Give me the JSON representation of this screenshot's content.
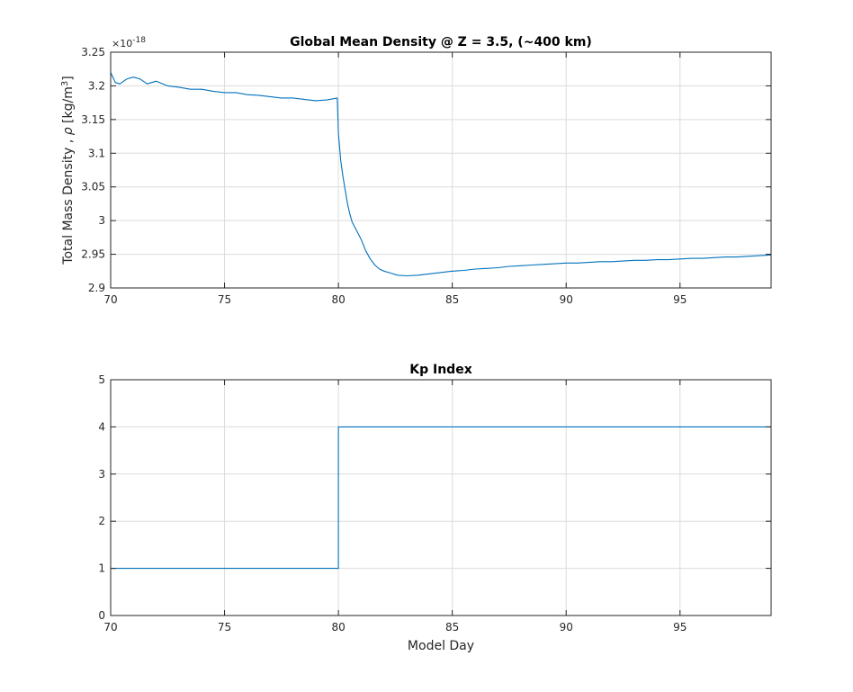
{
  "chart_data": [
    {
      "type": "line",
      "title": "Global Mean Density @ Z = 3.5, (~400 km)",
      "ylabel_main": "Total Mass Density , ",
      "ylabel_symbol": "ρ",
      "ylabel_unit_open": " [kg/m",
      "ylabel_unit_exp": "3",
      "ylabel_unit_close": "]",
      "exponent_base": "×10",
      "exponent_power": "-18",
      "xlim": [
        70,
        99
      ],
      "ylim": [
        2.9,
        3.25
      ],
      "xticks": [
        "70",
        "75",
        "80",
        "85",
        "90",
        "95"
      ],
      "yticks": [
        "2.9",
        "2.95",
        "3",
        "3.05",
        "3.1",
        "3.15",
        "3.2",
        "3.25"
      ],
      "grid": true,
      "line_color": "#0072BD",
      "series": [
        {
          "x": [
            70.0,
            70.2,
            70.4,
            70.7,
            71.0,
            71.3,
            71.6,
            72.0,
            72.5,
            73.0,
            73.5,
            74.0,
            74.5,
            75.0,
            75.5,
            76.0,
            76.5,
            77.0,
            77.5,
            78.0,
            78.5,
            79.0,
            79.5,
            79.95,
            80.0,
            80.1,
            80.2,
            80.3,
            80.4,
            80.5,
            80.6,
            80.8,
            81.0,
            81.2,
            81.4,
            81.6,
            81.8,
            82.0,
            82.3,
            82.6,
            83.0,
            83.5,
            84.0,
            84.5,
            85.0,
            85.5,
            86.0,
            86.5,
            87.0,
            87.5,
            88.0,
            88.5,
            89.0,
            89.5,
            90.0,
            90.5,
            91.0,
            91.5,
            92.0,
            92.5,
            93.0,
            93.5,
            94.0,
            94.5,
            95.0,
            95.5,
            96.0,
            96.5,
            97.0,
            97.5,
            98.0,
            98.5,
            99.0
          ],
          "y": [
            3.22,
            3.205,
            3.203,
            3.21,
            3.213,
            3.21,
            3.203,
            3.207,
            3.2,
            3.198,
            3.195,
            3.195,
            3.192,
            3.19,
            3.19,
            3.187,
            3.186,
            3.184,
            3.182,
            3.182,
            3.18,
            3.178,
            3.179,
            3.182,
            3.13,
            3.09,
            3.065,
            3.045,
            3.025,
            3.01,
            2.998,
            2.985,
            2.972,
            2.955,
            2.943,
            2.934,
            2.928,
            2.925,
            2.922,
            2.919,
            2.918,
            2.919,
            2.921,
            2.923,
            2.925,
            2.926,
            2.928,
            2.929,
            2.93,
            2.932,
            2.933,
            2.934,
            2.935,
            2.936,
            2.937,
            2.937,
            2.938,
            2.939,
            2.939,
            2.94,
            2.941,
            2.941,
            2.942,
            2.942,
            2.943,
            2.944,
            2.944,
            2.945,
            2.946,
            2.946,
            2.947,
            2.948,
            2.949
          ]
        }
      ]
    },
    {
      "type": "line",
      "title": "Kp Index",
      "xlabel": "Model Day",
      "xlim": [
        70,
        99
      ],
      "ylim": [
        0,
        5
      ],
      "xticks": [
        "70",
        "75",
        "80",
        "85",
        "90",
        "95"
      ],
      "yticks": [
        "0",
        "1",
        "2",
        "3",
        "4",
        "5"
      ],
      "grid": true,
      "line_color": "#0072BD",
      "series": [
        {
          "x": [
            70,
            80,
            80,
            99
          ],
          "y": [
            1,
            1,
            4,
            4
          ]
        }
      ]
    }
  ]
}
